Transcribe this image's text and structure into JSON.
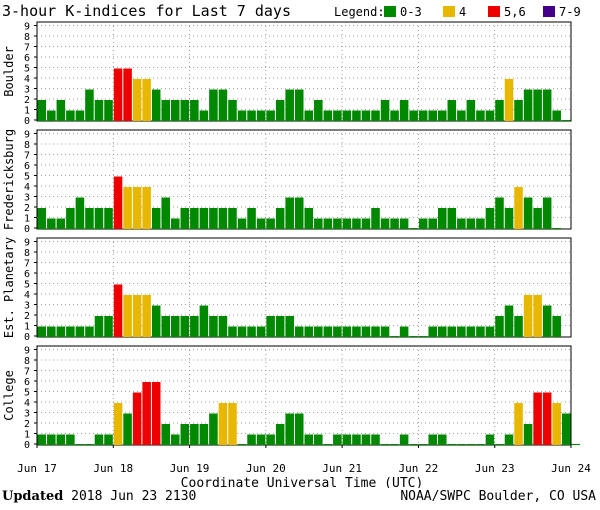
{
  "title": "3-hour K-indices for Last 7 days",
  "legend": {
    "label": "Legend:",
    "items": [
      {
        "label": "0-3",
        "color": "#008800"
      },
      {
        "label": "4",
        "color": "#e8b800"
      },
      {
        "label": "5,6",
        "color": "#ee0000"
      },
      {
        "label": "7-9",
        "color": "#440088"
      }
    ]
  },
  "footer": {
    "updated_label": "Updated",
    "updated_value": "2018 Jun 23 2130",
    "source": "NOAA/SWPC Boulder, CO USA"
  },
  "chart_data": {
    "type": "bar",
    "xlabel": "Coordinate Universal Time (UTC)",
    "x_ticks": [
      "Jun 17",
      "Jun 18",
      "Jun 19",
      "Jun 20",
      "Jun 21",
      "Jun 22",
      "Jun 23",
      "Jun 24"
    ],
    "ylim": [
      0,
      9
    ],
    "y_ticks": [
      0,
      1,
      2,
      3,
      4,
      5,
      6,
      7,
      8,
      9
    ],
    "interval_hours": 3,
    "grid": true,
    "panels": [
      {
        "name": "Boulder",
        "values": [
          2,
          1,
          2,
          1,
          1,
          3,
          2,
          2,
          5,
          5,
          4,
          4,
          3,
          2,
          2,
          2,
          2,
          1,
          3,
          3,
          2,
          1,
          1,
          1,
          1,
          2,
          3,
          3,
          1,
          2,
          1,
          1,
          1,
          1,
          1,
          1,
          2,
          1,
          2,
          1,
          1,
          1,
          1,
          2,
          1,
          2,
          1,
          1,
          2,
          4,
          2,
          3,
          3,
          3,
          1,
          0.1
        ]
      },
      {
        "name": "Fredericksburg",
        "values": [
          2,
          1,
          1,
          2,
          3,
          2,
          2,
          2,
          5,
          4,
          4,
          4,
          2,
          3,
          1,
          2,
          2,
          2,
          2,
          2,
          2,
          1,
          2,
          1,
          1,
          2,
          3,
          3,
          2,
          1,
          1,
          1,
          1,
          1,
          1,
          2,
          1,
          1,
          1,
          0.1,
          1,
          1,
          2,
          2,
          1,
          1,
          1,
          2,
          3,
          2,
          4,
          3,
          2,
          3,
          0.1
        ]
      },
      {
        "name": "Est. Planetary",
        "values": [
          1,
          1,
          1,
          1,
          1,
          1,
          2,
          2,
          5,
          4,
          4,
          4,
          3,
          2,
          2,
          2,
          2,
          3,
          2,
          2,
          1,
          1,
          1,
          1,
          2,
          2,
          2,
          1,
          1,
          1,
          1,
          1,
          1,
          1,
          1,
          1,
          1,
          0.1,
          1,
          0.1,
          0.1,
          1,
          1,
          1,
          1,
          1,
          1,
          1,
          2,
          3,
          2,
          4,
          4,
          3,
          2
        ]
      },
      {
        "name": "College",
        "values": [
          1,
          1,
          1,
          1,
          0.1,
          0.1,
          1,
          1,
          4,
          3,
          5,
          6,
          6,
          2,
          1,
          2,
          2,
          2,
          3,
          4,
          4,
          0.1,
          1,
          1,
          1,
          2,
          3,
          3,
          1,
          1,
          0.1,
          1,
          1,
          1,
          1,
          1,
          0.1,
          0.1,
          1,
          0.1,
          0.1,
          1,
          1,
          0.1,
          0.1,
          0.1,
          0.1,
          1,
          0.1,
          1,
          4,
          2,
          5,
          5,
          4,
          3,
          0.1
        ]
      }
    ]
  }
}
